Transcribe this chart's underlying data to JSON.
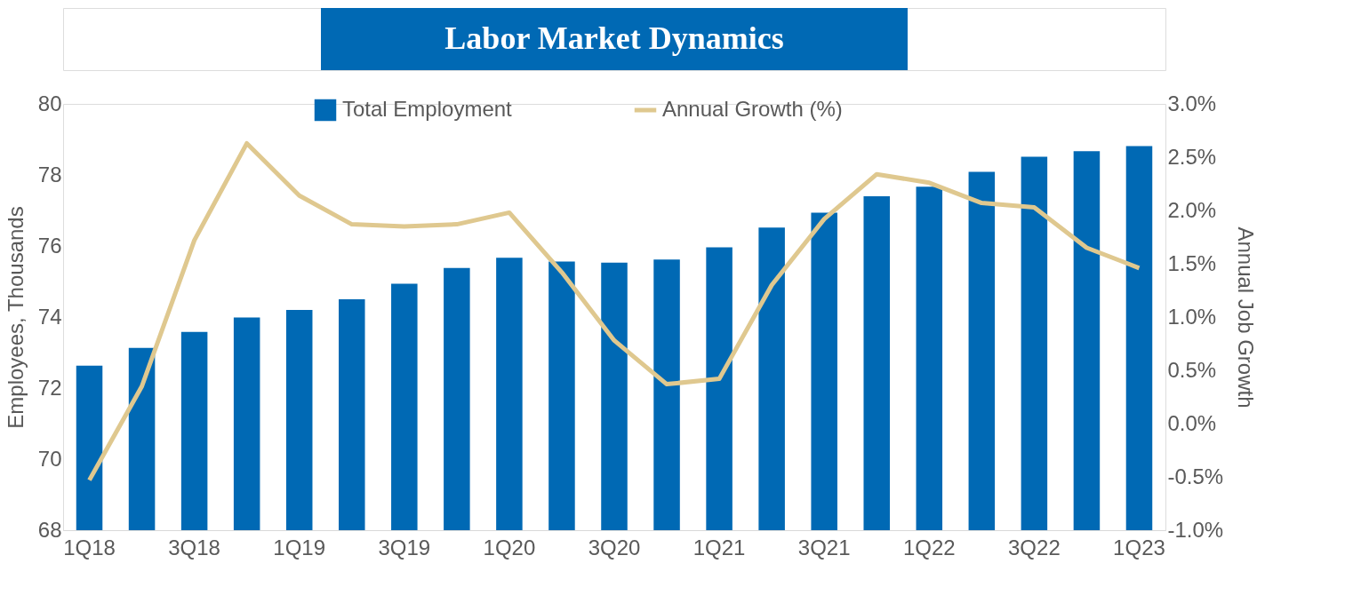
{
  "chart_data": {
    "type": "bar",
    "title": "Labor Market Dynamics",
    "categories": [
      "1Q18",
      null,
      "3Q18",
      null,
      "1Q19",
      null,
      "3Q19",
      null,
      "1Q20",
      null,
      "3Q20",
      null,
      "1Q21",
      null,
      "3Q21",
      null,
      "1Q22",
      null,
      "3Q22",
      null,
      "1Q23"
    ],
    "series": [
      {
        "name": "Total Employment",
        "color": "#0069b4",
        "values": [
          72.63,
          73.13,
          73.58,
          73.99,
          74.2,
          74.5,
          74.94,
          75.38,
          75.67,
          75.56,
          75.53,
          75.62,
          75.96,
          76.52,
          76.94,
          77.4,
          77.67,
          78.09,
          78.51,
          78.67,
          78.81
        ]
      },
      {
        "name": "Annual Growth (%)",
        "type": "line",
        "axis": "y2",
        "color": "#dfc88f",
        "values": [
          -0.53,
          0.35,
          1.72,
          2.63,
          2.14,
          1.87,
          1.85,
          1.87,
          1.98,
          1.42,
          0.78,
          0.37,
          0.42,
          1.3,
          1.92,
          2.34,
          2.26,
          2.07,
          2.03,
          1.65,
          1.46
        ]
      }
    ],
    "ylabel": "Employees, Thousands",
    "y2label": "Annual Job Growth",
    "ylim": [
      68,
      80
    ],
    "yticks": [
      68,
      70,
      72,
      74,
      76,
      78,
      80
    ],
    "y2lim": [
      -1.0,
      3.0
    ],
    "y2ticks": [
      {
        "value": -1.0,
        "label": "-1.0%"
      },
      {
        "value": -0.5,
        "label": "-0.5%"
      },
      {
        "value": 0.0,
        "label": "0.0%"
      },
      {
        "value": 0.5,
        "label": "0.5%"
      },
      {
        "value": 1.0,
        "label": "1.0%"
      },
      {
        "value": 1.5,
        "label": "1.5%"
      },
      {
        "value": 2.0,
        "label": "2.0%"
      },
      {
        "value": 2.5,
        "label": "2.5%"
      },
      {
        "value": 3.0,
        "label": "3.0%"
      }
    ],
    "legend": "top",
    "grid": false
  }
}
